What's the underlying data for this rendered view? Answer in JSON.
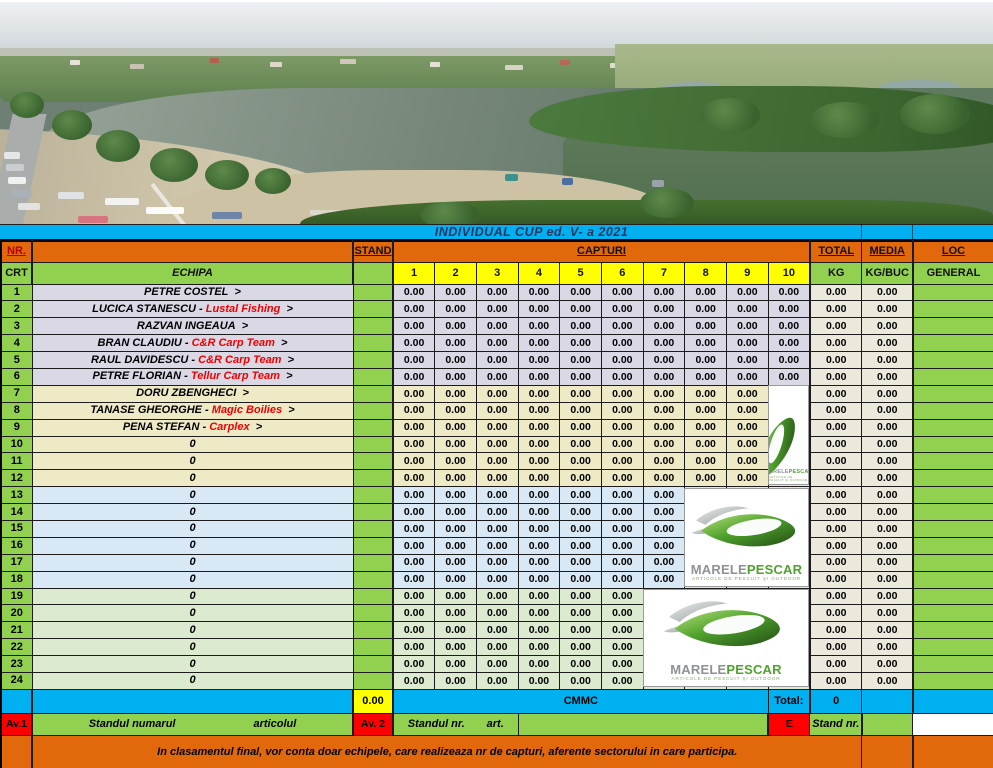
{
  "title": "INDIVIDUAL  CUP ed. V- a  2021",
  "header": {
    "nr": "NR.",
    "crt": "CRT",
    "echipa": "ECHIPA",
    "stand": "STAND",
    "capturi": "CAPTURI",
    "capture_cols": [
      "1",
      "2",
      "3",
      "4",
      "5",
      "6",
      "7",
      "8",
      "9",
      "10"
    ],
    "total": "TOTAL",
    "total_unit": "KG",
    "media": "MEDIA",
    "media_unit": "KG/BUC",
    "loc": "LOC",
    "loc_unit": "GENERAL"
  },
  "table": {
    "captures_template": [
      "0.00",
      "0.00",
      "0.00",
      "0.00",
      "0.00",
      "0.00",
      "0.00",
      "0.00",
      "0.00",
      "0.00"
    ],
    "rows": [
      {
        "nr": "1",
        "name": "PETRE  COSTEL",
        "team": "",
        "total": "0.00",
        "media": "0.00",
        "loc": "",
        "g": "a"
      },
      {
        "nr": "2",
        "name": "LUCICA STANESCU -",
        "team": "Lustal Fishing",
        "total": "0.00",
        "media": "0.00",
        "loc": "",
        "g": "a"
      },
      {
        "nr": "3",
        "name": "RAZVAN  INGEAUA",
        "team": "",
        "total": "0.00",
        "media": "0.00",
        "loc": "",
        "g": "a"
      },
      {
        "nr": "4",
        "name": "BRAN CLAUDIU -",
        "team": "C&R Carp Team",
        "total": "0.00",
        "media": "0.00",
        "loc": "",
        "g": "a"
      },
      {
        "nr": "5",
        "name": "RAUL  DAVIDESCU -",
        "team": "C&R Carp Team",
        "total": "0.00",
        "media": "0.00",
        "loc": "",
        "g": "a"
      },
      {
        "nr": "6",
        "name": "PETRE  FLORIAN -",
        "team": "Tellur Carp Team",
        "total": "0.00",
        "media": "0.00",
        "loc": "",
        "g": "a"
      },
      {
        "nr": "7",
        "name": "DORU  ZBENGHECI",
        "team": "",
        "total": "0.00",
        "media": "0.00",
        "loc": "",
        "g": "b"
      },
      {
        "nr": "8",
        "name": "TANASE GHEORGHE -",
        "team": "Magic Boilies",
        "total": "0.00",
        "media": "0.00",
        "loc": "",
        "g": "b"
      },
      {
        "nr": "9",
        "name": "PENA  STEFAN -",
        "team": "Carplex",
        "total": "0.00",
        "media": "0.00",
        "loc": "",
        "g": "b"
      },
      {
        "nr": "10",
        "name": "0",
        "team": "",
        "total": "0.00",
        "media": "0.00",
        "loc": "",
        "g": "b"
      },
      {
        "nr": "11",
        "name": "0",
        "team": "",
        "total": "0.00",
        "media": "0.00",
        "loc": "",
        "g": "b"
      },
      {
        "nr": "12",
        "name": "0",
        "team": "",
        "total": "0.00",
        "media": "0.00",
        "loc": "",
        "g": "b"
      },
      {
        "nr": "13",
        "name": "0",
        "team": "",
        "total": "0.00",
        "media": "0.00",
        "loc": "",
        "g": "c"
      },
      {
        "nr": "14",
        "name": "0",
        "team": "",
        "total": "0.00",
        "media": "0.00",
        "loc": "",
        "g": "c"
      },
      {
        "nr": "15",
        "name": "0",
        "team": "",
        "total": "0.00",
        "media": "0.00",
        "loc": "",
        "g": "c"
      },
      {
        "nr": "16",
        "name": "0",
        "team": "",
        "total": "0.00",
        "media": "0.00",
        "loc": "",
        "g": "c"
      },
      {
        "nr": "17",
        "name": "0",
        "team": "",
        "total": "0.00",
        "media": "0.00",
        "loc": "",
        "g": "c"
      },
      {
        "nr": "18",
        "name": "0",
        "team": "",
        "total": "0.00",
        "media": "0.00",
        "loc": "",
        "g": "c"
      },
      {
        "nr": "19",
        "name": "0",
        "team": "",
        "total": "0.00",
        "media": "0.00",
        "loc": "",
        "g": "d"
      },
      {
        "nr": "20",
        "name": "0",
        "team": "",
        "total": "0.00",
        "media": "0.00",
        "loc": "",
        "g": "d"
      },
      {
        "nr": "21",
        "name": "0",
        "team": "",
        "total": "0.00",
        "media": "0.00",
        "loc": "",
        "g": "d"
      },
      {
        "nr": "22",
        "name": "0",
        "team": "",
        "total": "0.00",
        "media": "0.00",
        "loc": "",
        "g": "d"
      },
      {
        "nr": "23",
        "name": "0",
        "team": "",
        "total": "0.00",
        "media": "0.00",
        "loc": "",
        "g": "d"
      },
      {
        "nr": "24",
        "name": "0",
        "team": "",
        "total": "0.00",
        "media": "0.00",
        "loc": "",
        "g": "d"
      }
    ]
  },
  "footer": {
    "stand_value": "0.00",
    "cmmc": "CMMC",
    "total_label": "Total:",
    "total_value": "0",
    "av1": "Av.1",
    "standul_numarul": "Standul numarul",
    "articolul": "articolul",
    "av2": "Av. 2",
    "standul_nr": "Standul  nr.",
    "art": "art.",
    "e": "E",
    "stand_nr": "Stand nr.",
    "note": "In clasamentul final, vor conta doar echipele, care realizeaza nr de capturi, aferente sectorului in care participa."
  },
  "logo": {
    "brand_grey": "MARELE",
    "brand_green": "PESCAR",
    "tagline": "ARTICOLE DE PESCUIT ŞI OUTDOOR"
  },
  "colors": {
    "orange": "#E2690B",
    "green": "#92D050",
    "cyan": "#00B0F0",
    "yellow": "#FFFF00",
    "red": "#FF0000",
    "title_text": "#1F3864",
    "team_red": "#EE0000"
  }
}
